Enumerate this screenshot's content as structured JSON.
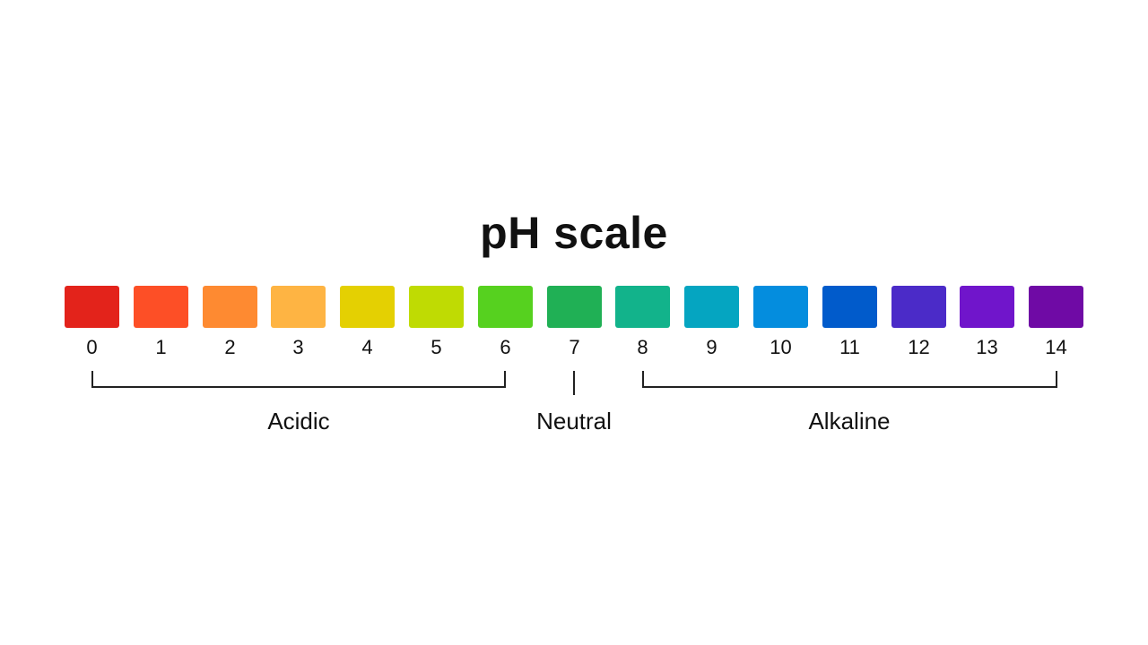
{
  "title": "pH scale",
  "scale": [
    {
      "value": "0",
      "color": "#e3231b"
    },
    {
      "value": "1",
      "color": "#fd4f26"
    },
    {
      "value": "2",
      "color": "#fe8a31"
    },
    {
      "value": "3",
      "color": "#feb443"
    },
    {
      "value": "4",
      "color": "#e4d002"
    },
    {
      "value": "5",
      "color": "#bfdb03"
    },
    {
      "value": "6",
      "color": "#56d11f"
    },
    {
      "value": "7",
      "color": "#20b055"
    },
    {
      "value": "8",
      "color": "#12b38b"
    },
    {
      "value": "9",
      "color": "#05a5c1"
    },
    {
      "value": "10",
      "color": "#048dde"
    },
    {
      "value": "11",
      "color": "#015bcb"
    },
    {
      "value": "12",
      "color": "#4b2bc8"
    },
    {
      "value": "13",
      "color": "#7015cb"
    },
    {
      "value": "14",
      "color": "#6f0aa5"
    }
  ],
  "groups": {
    "acidic": "Acidic",
    "neutral": "Neutral",
    "alkaline": "Alkaline"
  }
}
